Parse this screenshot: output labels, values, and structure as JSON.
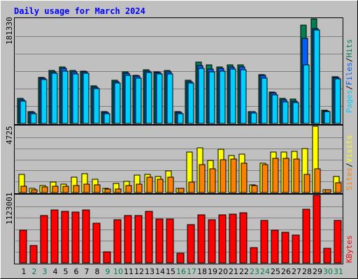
{
  "title": "Daily usage for March 2024",
  "colors": {
    "background": "#c0c0c0",
    "title": "#0000ff",
    "weekday": "#000000",
    "weekend": "#00804a",
    "hits": "#007f50",
    "files": "#0060ff",
    "pages": "#00d0ff",
    "visits": "#ffff00",
    "sites": "#ff8000",
    "kbytes": "#ff0000",
    "gridline": "#808080",
    "frame_dark": "#000000",
    "frame_light": "#ffffff"
  },
  "panel_labels": {
    "hits_max": "181330",
    "visits_max": "4725",
    "kbytes_max": "1123001",
    "legend_pages": "Pages",
    "legend_files": "Files",
    "legend_hits": "Hits",
    "legend_sites": "Sites",
    "legend_visits": "Visits",
    "legend_kbytes": "KBytes",
    "separator": "/"
  },
  "chart_data": {
    "type": "bar",
    "categories": [
      "1",
      "2",
      "3",
      "4",
      "5",
      "6",
      "7",
      "8",
      "9",
      "10",
      "11",
      "12",
      "13",
      "14",
      "15",
      "16",
      "17",
      "18",
      "19",
      "20",
      "21",
      "22",
      "23",
      "24",
      "25",
      "26",
      "27",
      "28",
      "29",
      "30",
      "31"
    ],
    "weekend_days": [
      "2",
      "3",
      "9",
      "10",
      "16",
      "17",
      "23",
      "24",
      "30",
      "31"
    ],
    "panels": [
      {
        "ylim": [
          0,
          181330
        ],
        "series": [
          {
            "name": "Hits",
            "values": [
              43000,
              20000,
              80000,
              92000,
              98000,
              92000,
              91000,
              65000,
              20000,
              75000,
              89000,
              84000,
              93000,
              90000,
              92000,
              20000,
              75000,
              106000,
              101000,
              98000,
              101000,
              101000,
              21000,
              85000,
              55000,
              43000,
              42000,
              170000,
              181330,
              23000,
              81000
            ]
          },
          {
            "name": "Files",
            "values": [
              41000,
              19000,
              78000,
              90000,
              96000,
              90000,
              89000,
              63000,
              19000,
              72000,
              87000,
              82000,
              91000,
              88000,
              90000,
              19000,
              73000,
              100000,
              94000,
              95000,
              98000,
              98000,
              20000,
              83000,
              53000,
              41000,
              39000,
              148000,
              164000,
              22000,
              80000
            ]
          },
          {
            "name": "Pages",
            "values": [
              39000,
              17000,
              76000,
              87000,
              91000,
              86000,
              87000,
              60000,
              17000,
              70000,
              83000,
              79000,
              88000,
              86000,
              86000,
              17000,
              70000,
              95000,
              89000,
              91000,
              94000,
              93000,
              18000,
              79000,
              50000,
              38000,
              36000,
              102000,
              162000,
              21000,
              77000
            ]
          }
        ]
      },
      {
        "ylim": [
          0,
          4725
        ],
        "series": [
          {
            "name": "Visits",
            "values": [
              1270,
              300,
              500,
              760,
              620,
              1100,
              1350,
              940,
              290,
              630,
              780,
              1250,
              1280,
              1150,
              1530,
              290,
              2880,
              3160,
              2300,
              3100,
              2650,
              2750,
              560,
              2110,
              2900,
              2860,
              2950,
              3150,
              4725,
              200,
              1120
            ]
          },
          {
            "name": "Sites",
            "values": [
              460,
              210,
              400,
              460,
              430,
              510,
              620,
              570,
              250,
              270,
              500,
              620,
              1070,
              960,
              1080,
              280,
              740,
              1970,
              1670,
              2360,
              2400,
              2100,
              520,
              2010,
              2440,
              2460,
              2380,
              1280,
              1670,
              190,
              690
            ]
          }
        ]
      },
      {
        "ylim": [
          0,
          1123001
        ],
        "series": [
          {
            "name": "KBytes",
            "values": [
              547000,
              287000,
              782000,
              879000,
              857000,
              849000,
              880000,
              662000,
              189000,
              722000,
              789000,
              787000,
              860000,
              728000,
              731000,
              159000,
              632000,
              801000,
              721000,
              800000,
              812000,
              836000,
              254000,
              711000,
              541000,
              507000,
              467000,
              886000,
              1123001,
              247000,
              711000
            ]
          }
        ]
      }
    ]
  }
}
